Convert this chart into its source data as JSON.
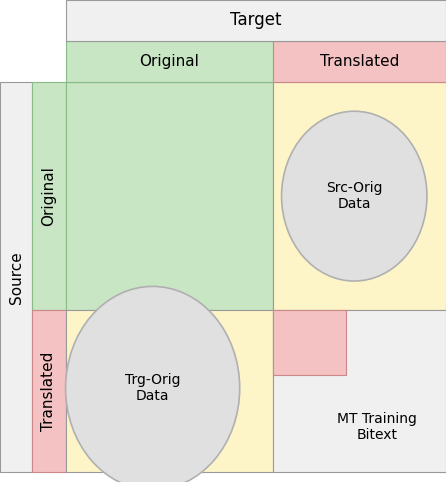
{
  "fig_width": 4.46,
  "fig_height": 4.82,
  "dpi": 100,
  "colors": {
    "green_light": "#c8e6c4",
    "red_light": "#f4c2c2",
    "yellow_light": "#fdf5c8",
    "gray_light": "#f0f0f0",
    "circle_fill": "#e0e0e0",
    "circle_edge": "#b0b0b0",
    "border_gray": "#999999",
    "border_green": "#88bb88",
    "border_red": "#cc8888"
  },
  "labels": {
    "source": "Source",
    "target": "Target",
    "original_row": "Original",
    "translated_row": "Translated",
    "original_col": "Original",
    "translated_col": "Translated",
    "src_orig": "Src-Orig\nData",
    "trg_orig": "Trg-Orig\nData",
    "mt_training": "MT Training\nBitext"
  },
  "font_sizes": {
    "header": 12,
    "label": 11,
    "circle": 10
  }
}
